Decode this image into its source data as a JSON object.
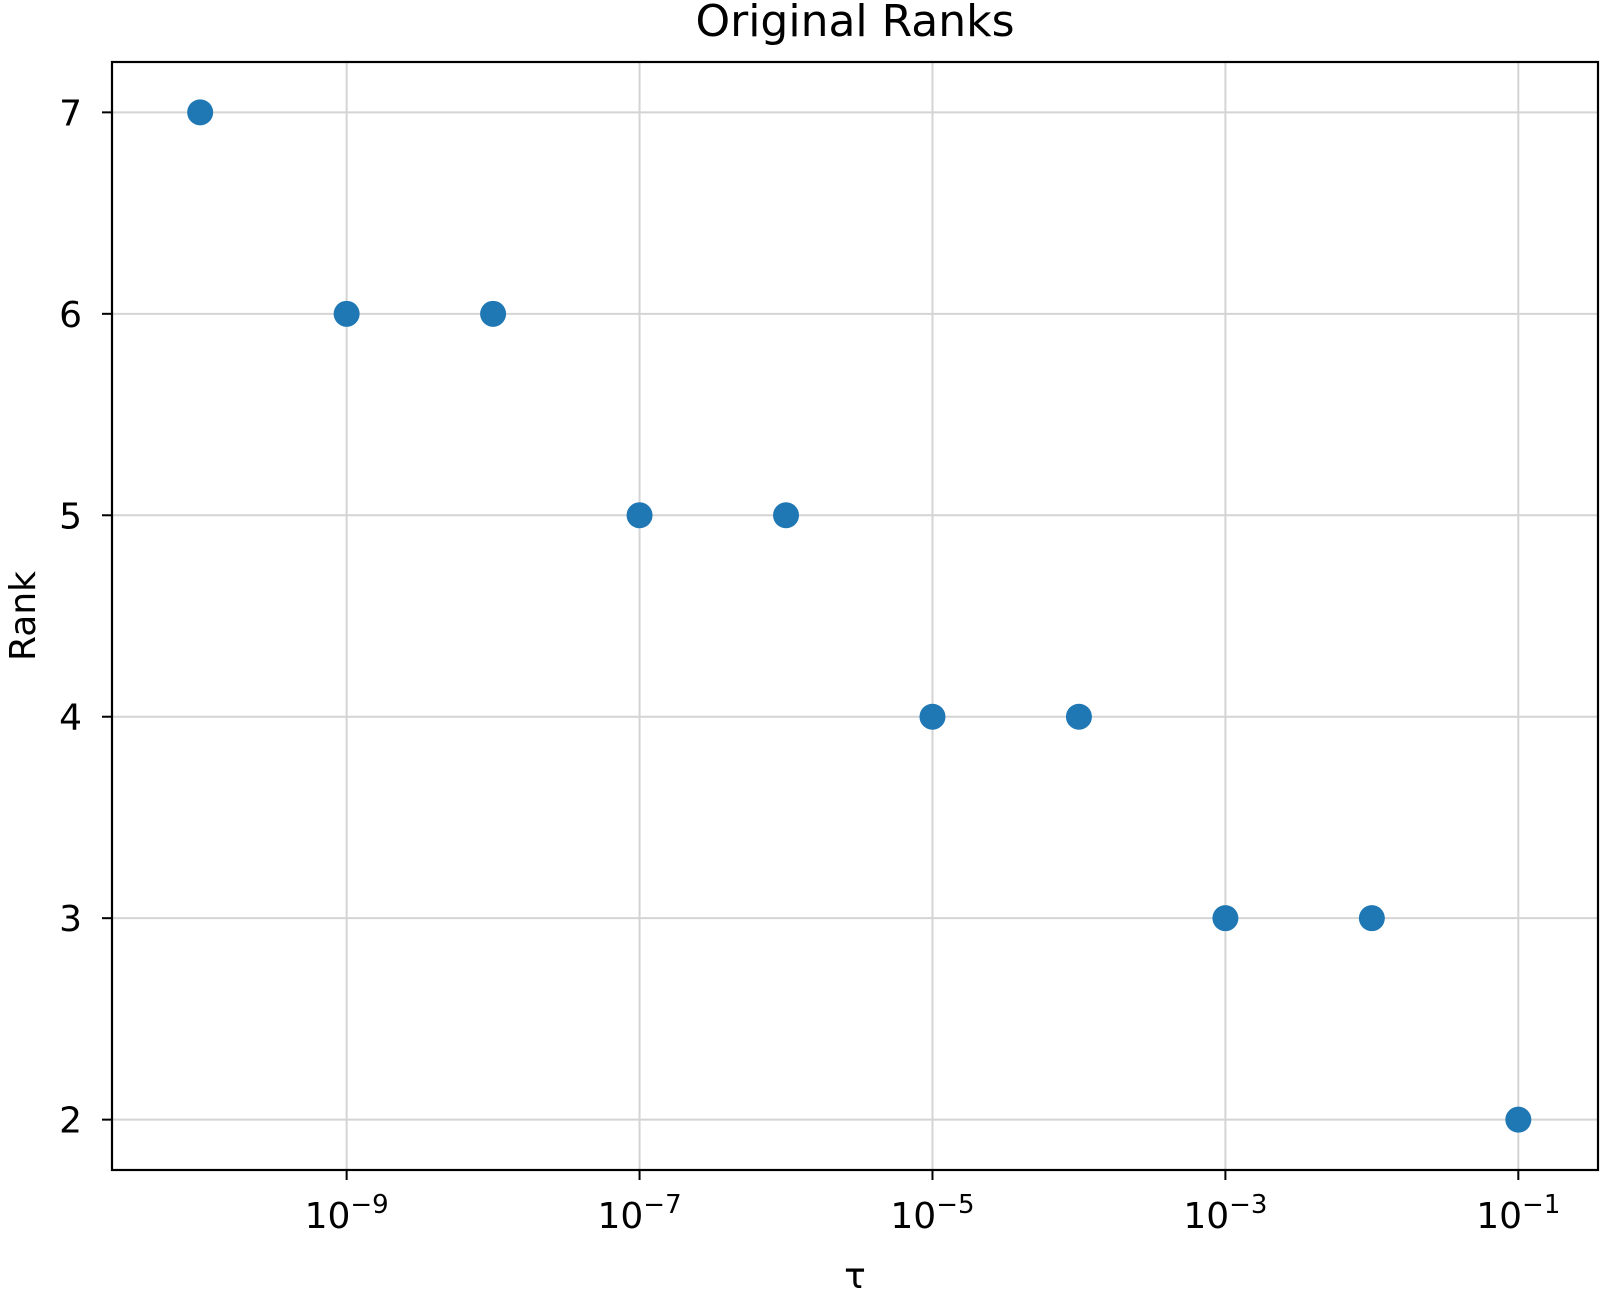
{
  "chart_data": {
    "type": "scatter",
    "title": "Original Ranks",
    "xlabel": "τ",
    "ylabel": "Rank",
    "x_scale": "log",
    "x_ticks": [
      {
        "value": 1e-09,
        "base": "10",
        "exp": "−9"
      },
      {
        "value": 1e-07,
        "base": "10",
        "exp": "−7"
      },
      {
        "value": 1e-05,
        "base": "10",
        "exp": "−5"
      },
      {
        "value": 0.001,
        "base": "10",
        "exp": "−3"
      },
      {
        "value": 0.1,
        "base": "10",
        "exp": "−1"
      }
    ],
    "y_ticks": [
      2,
      3,
      4,
      5,
      6,
      7
    ],
    "xlim": [
      2.5e-11,
      0.35
    ],
    "ylim": [
      1.75,
      7.25
    ],
    "grid": true,
    "series": [
      {
        "color": "#1f77b4",
        "x": [
          1e-10,
          1e-09,
          1e-08,
          1e-07,
          1e-06,
          1e-05,
          0.0001,
          0.001,
          0.01,
          0.1
        ],
        "y": [
          7,
          6,
          6,
          5,
          5,
          4,
          4,
          3,
          3,
          2
        ]
      }
    ]
  }
}
